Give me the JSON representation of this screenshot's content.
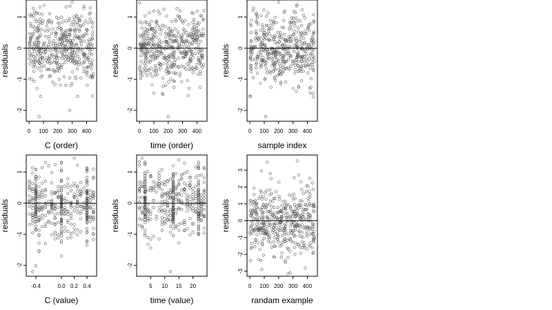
{
  "chart_data": [
    {
      "type": "scatter",
      "xlabel": "C (order)",
      "ylabel": "residuals",
      "xlim": [
        -20,
        470
      ],
      "ylim": [
        -2.35,
        1.55
      ],
      "xticks": [
        {
          "v": 0,
          "label": "0"
        },
        {
          "v": 100,
          "label": "100"
        },
        {
          "v": 200,
          "label": "200"
        },
        {
          "v": 300,
          "label": "300"
        },
        {
          "v": 400,
          "label": "400"
        }
      ],
      "yticks": [
        {
          "v": -2,
          "label": "-2"
        },
        {
          "v": -1,
          "label": "-1"
        },
        {
          "v": 0,
          "label": "0"
        },
        {
          "v": 1,
          "label": "1"
        }
      ],
      "hline": 0,
      "grid": false,
      "x_mode": "uniform",
      "n": 450,
      "seed": 11,
      "highlight": [
        {
          "x": 300,
          "y": 1.48
        },
        {
          "x": 70,
          "y": -2.2
        },
        {
          "x": 80,
          "y": -1.55
        },
        {
          "x": 420,
          "y": 1.1
        }
      ]
    },
    {
      "type": "scatter",
      "xlabel": "time (order)",
      "ylabel": "residuals",
      "xlim": [
        -20,
        470
      ],
      "ylim": [
        -2.35,
        1.55
      ],
      "xticks": [
        {
          "v": 0,
          "label": "0"
        },
        {
          "v": 100,
          "label": "100"
        },
        {
          "v": 200,
          "label": "200"
        },
        {
          "v": 300,
          "label": "300"
        },
        {
          "v": 400,
          "label": "400"
        }
      ],
      "yticks": [
        {
          "v": -2,
          "label": "-2"
        },
        {
          "v": -1,
          "label": "-1"
        },
        {
          "v": 0,
          "label": "0"
        },
        {
          "v": 1,
          "label": "1"
        }
      ],
      "hline": 0,
      "grid": false,
      "x_mode": "uniform",
      "n": 450,
      "seed": 23,
      "highlight": [
        {
          "x": 0,
          "y": 1.45
        },
        {
          "x": 200,
          "y": -2.2
        },
        {
          "x": 170,
          "y": 1.25
        },
        {
          "x": 100,
          "y": -1.45
        }
      ]
    },
    {
      "type": "scatter",
      "xlabel": "sample index",
      "ylabel": "residuals",
      "xlim": [
        -20,
        470
      ],
      "ylim": [
        -2.35,
        1.55
      ],
      "xticks": [
        {
          "v": 0,
          "label": "0"
        },
        {
          "v": 100,
          "label": "100"
        },
        {
          "v": 200,
          "label": "200"
        },
        {
          "v": 300,
          "label": "300"
        },
        {
          "v": 400,
          "label": "400"
        }
      ],
      "yticks": [
        {
          "v": -2,
          "label": "-2"
        },
        {
          "v": -1,
          "label": "-1"
        },
        {
          "v": 0,
          "label": "0"
        },
        {
          "v": 1,
          "label": "1"
        }
      ],
      "hline": 0,
      "grid": false,
      "x_mode": "uniform",
      "n": 450,
      "seed": 37,
      "highlight": [
        {
          "x": 200,
          "y": 1.48
        },
        {
          "x": 110,
          "y": -2.2
        },
        {
          "x": 0,
          "y": -1.55
        },
        {
          "x": 440,
          "y": -1.45
        }
      ]
    },
    {
      "type": "scatter",
      "xlabel": "C (value)",
      "ylabel": "residuals",
      "xlim": [
        -0.55,
        0.55
      ],
      "ylim": [
        -2.35,
        1.55
      ],
      "xticks": [
        {
          "v": -0.4,
          "label": "-0.4"
        },
        {
          "v": 0.0,
          "label": "0.0"
        },
        {
          "v": 0.2,
          "label": "0.2"
        },
        {
          "v": 0.4,
          "label": "0.4"
        }
      ],
      "yticks": [
        {
          "v": -2,
          "label": "-2"
        },
        {
          "v": -1,
          "label": "-1"
        },
        {
          "v": 0,
          "label": "0"
        },
        {
          "v": 1,
          "label": "1"
        }
      ],
      "hline": 0,
      "grid": false,
      "x_mode": "discrete",
      "x_levels": [
        -0.5,
        -0.45,
        -0.4,
        -0.35,
        -0.3,
        -0.25,
        -0.2,
        -0.15,
        -0.1,
        -0.05,
        0.0,
        0.05,
        0.1,
        0.15,
        0.2,
        0.25,
        0.3,
        0.35,
        0.4,
        0.45,
        0.5
      ],
      "n": 450,
      "seed": 41,
      "highlight": [
        {
          "x": 0.2,
          "y": 1.45
        },
        {
          "x": -0.45,
          "y": -2.2
        },
        {
          "x": -0.35,
          "y": -1.55
        }
      ]
    },
    {
      "type": "scatter",
      "xlabel": "time (value)",
      "ylabel": "residuals",
      "xlim": [
        0,
        25
      ],
      "ylim": [
        -2.35,
        1.55
      ],
      "xticks": [
        {
          "v": 5,
          "label": "5"
        },
        {
          "v": 10,
          "label": "10"
        },
        {
          "v": 15,
          "label": "15"
        },
        {
          "v": 20,
          "label": "20"
        }
      ],
      "yticks": [
        {
          "v": -2,
          "label": "-2"
        },
        {
          "v": -1,
          "label": "-1"
        },
        {
          "v": 0,
          "label": "0"
        },
        {
          "v": 1,
          "label": "1"
        }
      ],
      "hline": 0,
      "grid": false,
      "x_mode": "discrete",
      "x_levels": [
        1,
        2,
        3,
        4,
        5,
        6,
        7,
        8,
        9,
        10,
        11,
        12,
        13,
        14,
        15,
        16,
        17,
        18,
        19,
        20,
        21,
        22,
        23,
        24
      ],
      "n": 450,
      "seed": 53,
      "highlight": [
        {
          "x": 2,
          "y": 1.45
        },
        {
          "x": 12,
          "y": -2.2
        },
        {
          "x": 5,
          "y": -1.45
        }
      ]
    },
    {
      "type": "scatter",
      "xlabel": "randam example",
      "ylabel": "residuals",
      "xlim": [
        -20,
        470
      ],
      "ylim": [
        -3.3,
        3.9
      ],
      "xticks": [
        {
          "v": 0,
          "label": "0"
        },
        {
          "v": 100,
          "label": "100"
        },
        {
          "v": 200,
          "label": "200"
        },
        {
          "v": 300,
          "label": "300"
        },
        {
          "v": 400,
          "label": "400"
        }
      ],
      "yticks": [
        {
          "v": -3,
          "label": "-3"
        },
        {
          "v": -2,
          "label": "-2"
        },
        {
          "v": -1,
          "label": "-1"
        },
        {
          "v": 0,
          "label": "0"
        },
        {
          "v": 1,
          "label": "1"
        },
        {
          "v": 2,
          "label": "2"
        },
        {
          "v": 3,
          "label": "3"
        }
      ],
      "hline": 0,
      "grid": false,
      "x_mode": "uniform",
      "n": 450,
      "seed": 67,
      "spread": 1.0,
      "highlight": [
        {
          "x": 330,
          "y": 3.55
        },
        {
          "x": 80,
          "y": 2.95
        },
        {
          "x": 280,
          "y": -3.1
        },
        {
          "x": 60,
          "y": -2.3
        }
      ]
    }
  ]
}
